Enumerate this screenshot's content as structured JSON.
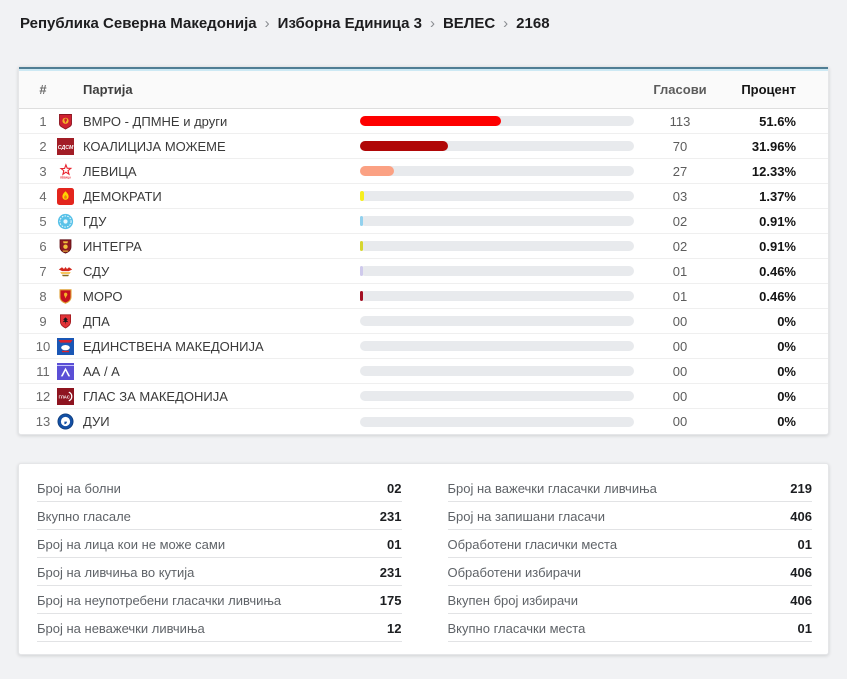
{
  "breadcrumb": {
    "items": [
      "Република Северна Македонија",
      "Изборна Единица 3",
      "ВЕЛЕС",
      "2168"
    ],
    "separator": "›"
  },
  "table": {
    "headers": {
      "num": "#",
      "party": "Партија",
      "votes": "Гласови",
      "percent": "Процент"
    },
    "rows": [
      {
        "num": "1",
        "party": "ВМРО - ДПМНЕ и други",
        "votes": "113",
        "percent": "51.6%",
        "bar_percent": 51.6,
        "bar_color": "#fe0000",
        "logo": "vmro-dpmne-logo-icon"
      },
      {
        "num": "2",
        "party": "КОАЛИЦИЈА МОЖЕМЕ",
        "votes": "70",
        "percent": "31.96%",
        "bar_percent": 31.96,
        "bar_color": "#b00707",
        "logo": "sdsm-logo-icon"
      },
      {
        "num": "3",
        "party": "ЛЕВИЦА",
        "votes": "27",
        "percent": "12.33%",
        "bar_percent": 12.33,
        "bar_color": "#fba183",
        "logo": "levica-logo-icon"
      },
      {
        "num": "4",
        "party": "ДЕМОКРАТИ",
        "votes": "03",
        "percent": "1.37%",
        "bar_percent": 1.37,
        "bar_color": "#f6ee1e",
        "logo": "demokrati-logo-icon"
      },
      {
        "num": "5",
        "party": "ГДУ",
        "votes": "02",
        "percent": "0.91%",
        "bar_percent": 0.91,
        "bar_color": "#92d1ee",
        "logo": "gdu-logo-icon"
      },
      {
        "num": "6",
        "party": "ИНТЕГРА",
        "votes": "02",
        "percent": "0.91%",
        "bar_percent": 0.91,
        "bar_color": "#d6d630",
        "logo": "integra-logo-icon"
      },
      {
        "num": "7",
        "party": "СДУ",
        "votes": "01",
        "percent": "0.46%",
        "bar_percent": 0.46,
        "bar_color": "#cfcaec",
        "logo": "sdu-logo-icon"
      },
      {
        "num": "8",
        "party": "МОРО",
        "votes": "01",
        "percent": "0.46%",
        "bar_percent": 0.46,
        "bar_color": "#a30f22",
        "logo": "moro-logo-icon"
      },
      {
        "num": "9",
        "party": "ДПА",
        "votes": "00",
        "percent": "0%",
        "bar_percent": 0,
        "bar_color": "transparent",
        "logo": "dpa-logo-icon"
      },
      {
        "num": "10",
        "party": "ЕДИНСТВЕНА МАКЕДОНИЈА",
        "votes": "00",
        "percent": "0%",
        "bar_percent": 0,
        "bar_color": "transparent",
        "logo": "edinstvena-makedonija-logo-icon"
      },
      {
        "num": "11",
        "party": "АА / А",
        "votes": "00",
        "percent": "0%",
        "bar_percent": 0,
        "bar_color": "transparent",
        "logo": "aa-a-logo-icon"
      },
      {
        "num": "12",
        "party": "ГЛАС ЗА МАКЕДОНИЈА",
        "votes": "00",
        "percent": "0%",
        "bar_percent": 0,
        "bar_color": "transparent",
        "logo": "glas-za-makedonija-logo-icon"
      },
      {
        "num": "13",
        "party": "ДУИ",
        "votes": "00",
        "percent": "0%",
        "bar_percent": 0,
        "bar_color": "transparent",
        "logo": "dui-logo-icon"
      }
    ]
  },
  "stats": {
    "left": [
      {
        "label": "Број на болни",
        "value": "02"
      },
      {
        "label": "Вкупно гласале",
        "value": "231"
      },
      {
        "label": "Број на лица кои не може сами",
        "value": "01"
      },
      {
        "label": "Број на ливчиња во кутија",
        "value": "231"
      },
      {
        "label": "Број на неупотребени гласачки ливчиња",
        "value": "175"
      },
      {
        "label": "Број на неважечки ливчиња",
        "value": "12"
      }
    ],
    "right": [
      {
        "label": "Број на важечки гласачки ливчиња",
        "value": "219"
      },
      {
        "label": "Број на запишани гласачи",
        "value": "406"
      },
      {
        "label": "Обработени гласички места",
        "value": "01"
      },
      {
        "label": "Обработени избирачи",
        "value": "406"
      },
      {
        "label": "Вкупен број избирачи",
        "value": "406"
      },
      {
        "label": "Вкупно гласачки места",
        "value": "01"
      }
    ]
  },
  "colors": {
    "page_bg": "#f1f2f4",
    "card_bg": "#ffffff",
    "accent_dark": "#507e94",
    "accent_light": "#cde9f4",
    "bar_track": "#e8eaed"
  }
}
